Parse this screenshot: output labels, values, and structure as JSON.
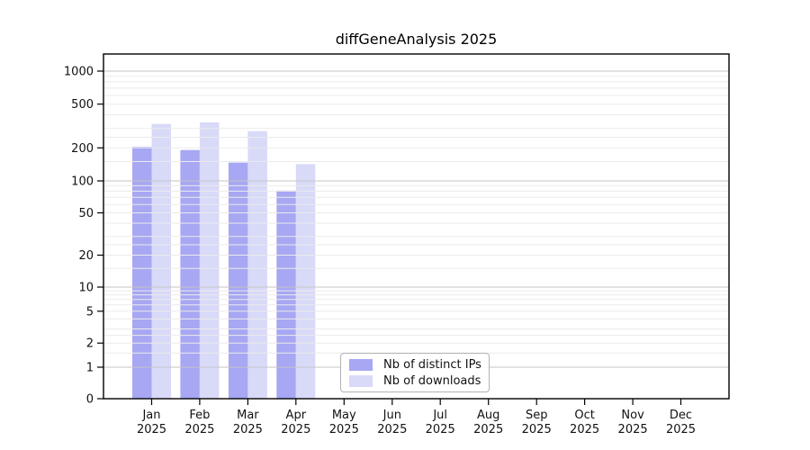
{
  "chart_data": {
    "type": "bar",
    "title": "diffGeneAnalysis 2025",
    "year_label": "2025",
    "categories": [
      "Jan",
      "Feb",
      "Mar",
      "Apr",
      "May",
      "Jun",
      "Jul",
      "Aug",
      "Sep",
      "Oct",
      "Nov",
      "Dec"
    ],
    "series": [
      {
        "name": "Nb of distinct IPs",
        "color": "#a7a7f3",
        "values": [
          204,
          191,
          147,
          81,
          null,
          null,
          null,
          null,
          null,
          null,
          null,
          null
        ]
      },
      {
        "name": "Nb of downloads",
        "color": "#d9d9f8",
        "values": [
          330,
          341,
          284,
          142,
          null,
          null,
          null,
          null,
          null,
          null,
          null,
          null
        ]
      }
    ],
    "yticks": [
      0,
      1,
      2,
      5,
      10,
      20,
      50,
      100,
      200,
      500,
      1000
    ],
    "ylim": [
      0,
      1400
    ],
    "scale": "symlog",
    "grid": {
      "major_at": [
        1,
        10,
        100,
        1000
      ],
      "major_color": "#c6c6c6",
      "minor_color": "#ebebeb",
      "minor_steps": [
        1.5,
        2,
        2.5,
        3,
        4,
        5,
        6,
        7,
        8,
        9
      ]
    },
    "axis_color": "#000000",
    "legend_position": "bottom-center"
  }
}
